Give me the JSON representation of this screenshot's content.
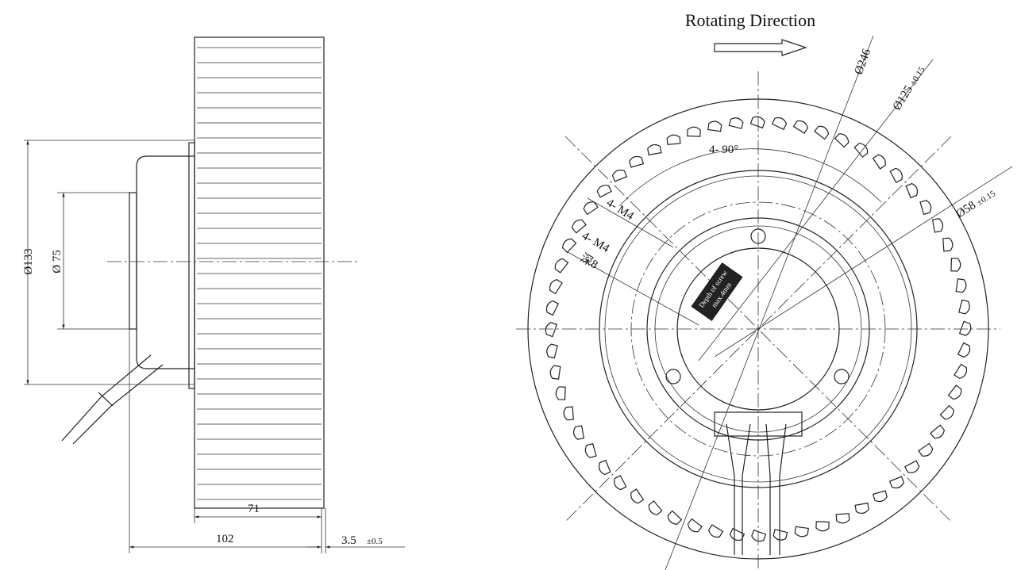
{
  "side_view": {
    "dimensions": {
      "outer_diameter": "Ø133",
      "inner_diameter": "Ø 75",
      "wheel_width": "71",
      "total_width": "102",
      "gap": "3.5",
      "gap_tolerance": "±0.5"
    }
  },
  "front_view": {
    "rotation_label": "Rotating Direction",
    "outer_diameter": "Ø246",
    "bolt_circle": "Ø125",
    "bolt_circle_tolerance": "±0.15",
    "hub_diameter": "Ø58",
    "hub_tolerance": "±0.15",
    "angle": "4- 90°",
    "thread_a": "4- M4",
    "thread_b": "4- M4",
    "thread_depth": "深8",
    "screw_note_line1": "Depth of screw",
    "screw_note_line2": "max.4mm"
  }
}
